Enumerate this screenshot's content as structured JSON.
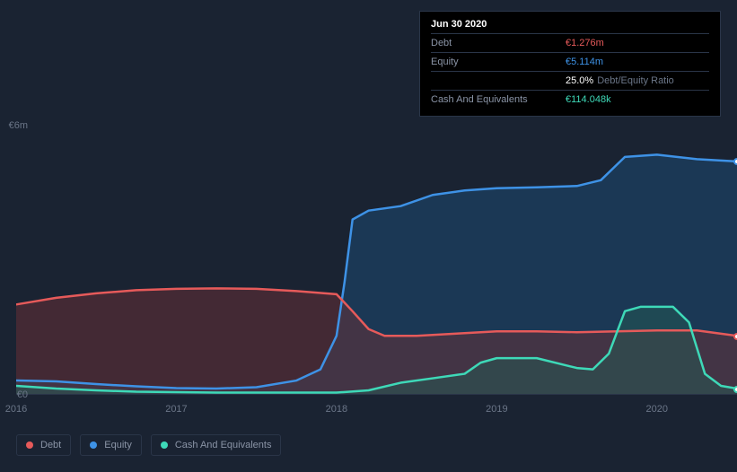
{
  "chart": {
    "type": "area",
    "background_color": "#1a2332",
    "grid_color": "#2a3548",
    "label_color": "#6b7688",
    "label_fontsize": 11,
    "xlim": [
      2016,
      2020.5
    ],
    "ylim": [
      0,
      6
    ],
    "y_unit_prefix": "€",
    "y_unit_suffix": "m",
    "yticks": [
      {
        "value": 0,
        "label": "€0"
      },
      {
        "value": 6,
        "label": "€6m"
      }
    ],
    "xticks": [
      {
        "value": 2016,
        "label": "2016"
      },
      {
        "value": 2017,
        "label": "2017"
      },
      {
        "value": 2018,
        "label": "2018"
      },
      {
        "value": 2019,
        "label": "2019"
      },
      {
        "value": 2020,
        "label": "2020"
      }
    ],
    "series": [
      {
        "id": "equity",
        "name": "Equity",
        "stroke": "#3e92e6",
        "fill": "#1e4a73",
        "fill_opacity": 0.55,
        "stroke_width": 2.5,
        "points": [
          [
            2016,
            0.3
          ],
          [
            2016.25,
            0.28
          ],
          [
            2016.5,
            0.22
          ],
          [
            2016.75,
            0.17
          ],
          [
            2017,
            0.13
          ],
          [
            2017.25,
            0.12
          ],
          [
            2017.5,
            0.15
          ],
          [
            2017.75,
            0.3
          ],
          [
            2017.9,
            0.55
          ],
          [
            2018,
            1.3
          ],
          [
            2018.05,
            2.5
          ],
          [
            2018.1,
            3.9
          ],
          [
            2018.2,
            4.1
          ],
          [
            2018.4,
            4.2
          ],
          [
            2018.6,
            4.45
          ],
          [
            2018.8,
            4.55
          ],
          [
            2019,
            4.6
          ],
          [
            2019.25,
            4.62
          ],
          [
            2019.5,
            4.65
          ],
          [
            2019.65,
            4.78
          ],
          [
            2019.8,
            5.3
          ],
          [
            2020,
            5.35
          ],
          [
            2020.25,
            5.25
          ],
          [
            2020.5,
            5.2
          ]
        ],
        "end_marker": {
          "fill": "#ffffff",
          "stroke": "#3e92e6",
          "r": 4
        }
      },
      {
        "id": "debt",
        "name": "Debt",
        "stroke": "#e65a5a",
        "fill": "#6b2f36",
        "fill_opacity": 0.5,
        "stroke_width": 2.5,
        "points": [
          [
            2016,
            2.0
          ],
          [
            2016.25,
            2.15
          ],
          [
            2016.5,
            2.25
          ],
          [
            2016.75,
            2.32
          ],
          [
            2017,
            2.35
          ],
          [
            2017.25,
            2.36
          ],
          [
            2017.5,
            2.35
          ],
          [
            2017.75,
            2.3
          ],
          [
            2018,
            2.23
          ],
          [
            2018.1,
            1.85
          ],
          [
            2018.2,
            1.45
          ],
          [
            2018.3,
            1.3
          ],
          [
            2018.5,
            1.3
          ],
          [
            2018.75,
            1.35
          ],
          [
            2019,
            1.4
          ],
          [
            2019.25,
            1.4
          ],
          [
            2019.5,
            1.38
          ],
          [
            2019.75,
            1.4
          ],
          [
            2020,
            1.42
          ],
          [
            2020.25,
            1.42
          ],
          [
            2020.5,
            1.3
          ]
        ],
        "end_marker": {
          "fill": "#ffffff",
          "stroke": "#e65a5a",
          "r": 4
        }
      },
      {
        "id": "cash",
        "name": "Cash And Equivalents",
        "stroke": "#3ed9b8",
        "fill": "#235a54",
        "fill_opacity": 0.5,
        "stroke_width": 2.5,
        "points": [
          [
            2016,
            0.18
          ],
          [
            2016.25,
            0.12
          ],
          [
            2016.5,
            0.08
          ],
          [
            2016.75,
            0.05
          ],
          [
            2017,
            0.04
          ],
          [
            2017.25,
            0.03
          ],
          [
            2017.5,
            0.03
          ],
          [
            2017.75,
            0.03
          ],
          [
            2018,
            0.03
          ],
          [
            2018.2,
            0.08
          ],
          [
            2018.4,
            0.25
          ],
          [
            2018.6,
            0.35
          ],
          [
            2018.8,
            0.45
          ],
          [
            2018.9,
            0.7
          ],
          [
            2019,
            0.8
          ],
          [
            2019.25,
            0.8
          ],
          [
            2019.5,
            0.58
          ],
          [
            2019.6,
            0.55
          ],
          [
            2019.7,
            0.9
          ],
          [
            2019.8,
            1.85
          ],
          [
            2019.9,
            1.95
          ],
          [
            2020.1,
            1.95
          ],
          [
            2020.2,
            1.6
          ],
          [
            2020.3,
            0.45
          ],
          [
            2020.4,
            0.18
          ],
          [
            2020.5,
            0.12
          ]
        ],
        "end_marker": {
          "fill": "#ffffff",
          "stroke": "#3ed9b8",
          "r": 4
        }
      }
    ]
  },
  "tooltip": {
    "title": "Jun 30 2020",
    "rows": [
      {
        "label": "Debt",
        "value": "€1.276m",
        "value_color": "#e65a5a"
      },
      {
        "label": "Equity",
        "value": "€5.114m",
        "value_color": "#3e92e6"
      },
      {
        "label": "",
        "value": "25.0%",
        "value_color": "#ffffff",
        "sublabel": "Debt/Equity Ratio"
      },
      {
        "label": "Cash And Equivalents",
        "value": "€114.048k",
        "value_color": "#3ed9b8"
      }
    ]
  },
  "legend": {
    "items": [
      {
        "id": "debt",
        "label": "Debt",
        "color": "#e65a5a"
      },
      {
        "id": "equity",
        "label": "Equity",
        "color": "#3e92e6"
      },
      {
        "id": "cash",
        "label": "Cash And Equivalents",
        "color": "#3ed9b8"
      }
    ]
  }
}
